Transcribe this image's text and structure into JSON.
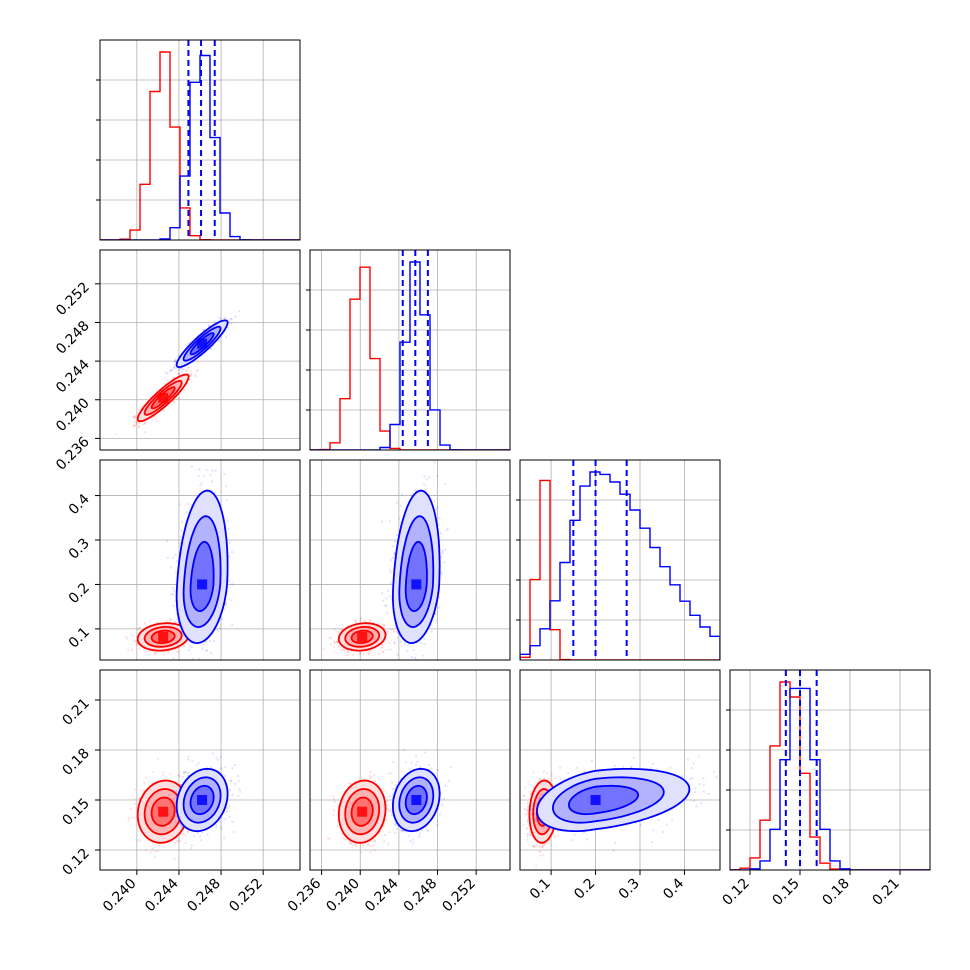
{
  "chart_data": {
    "type": "corner",
    "parameters": 4,
    "colors": {
      "series_a": "#ff0000",
      "series_b": "#0000ff",
      "grid": "#b0b0b0",
      "frame": "#000000"
    },
    "series": [
      {
        "color": "#ff0000",
        "means": [
          0.2425,
          0.2402,
          0.082,
          0.143
        ],
        "std": [
          0.0011,
          0.0011,
          0.014,
          0.0085
        ],
        "corr": [
          [
            1,
            0.9,
            0.15,
            0.1
          ],
          [
            0.9,
            1,
            0.15,
            0.1
          ],
          [
            0.15,
            0.15,
            1,
            0.1
          ],
          [
            0.1,
            0.1,
            0.1,
            1
          ]
        ]
      },
      {
        "color": "#0000ff",
        "means": [
          0.2462,
          0.2458,
          0.2,
          0.15
        ],
        "std": [
          0.0011,
          0.0011,
          0.06,
          0.0085
        ],
        "corr": [
          [
            1,
            0.9,
            0.2,
            0.2
          ],
          [
            0.9,
            1,
            0.2,
            0.2
          ],
          [
            0.2,
            0.2,
            1,
            0.35
          ],
          [
            0.2,
            0.2,
            0.35,
            1
          ]
        ],
        "quantiles": [
          [
            0.2449,
            0.2461,
            0.2474
          ],
          [
            0.2444,
            0.2457,
            0.247
          ],
          [
            0.15,
            0.2,
            0.27
          ],
          [
            0.1415,
            0.15,
            0.16
          ]
        ]
      }
    ],
    "axes": [
      {
        "range": [
          0.2365,
          0.2555
        ],
        "ticks": [
          0.24,
          0.244,
          0.248,
          0.252
        ],
        "tick_labels": [
          "0.240",
          "0.244",
          "0.248",
          "0.252"
        ]
      },
      {
        "range": [
          0.2348,
          0.2555
        ],
        "ticks": [
          0.236,
          0.24,
          0.244,
          0.248,
          0.252
        ],
        "tick_labels": [
          "0.236",
          "0.240",
          "0.244",
          "0.248",
          "0.252"
        ]
      },
      {
        "range": [
          0.03,
          0.48
        ],
        "ticks": [
          0.1,
          0.2,
          0.3,
          0.4
        ],
        "tick_labels": [
          "0.1",
          "0.2",
          "0.3",
          "0.4"
        ]
      },
      {
        "range": [
          0.108,
          0.228
        ],
        "ticks": [
          0.12,
          0.15,
          0.18,
          0.21
        ],
        "tick_labels": [
          "0.12",
          "0.15",
          "0.18",
          "0.21"
        ]
      }
    ],
    "grid": true
  }
}
